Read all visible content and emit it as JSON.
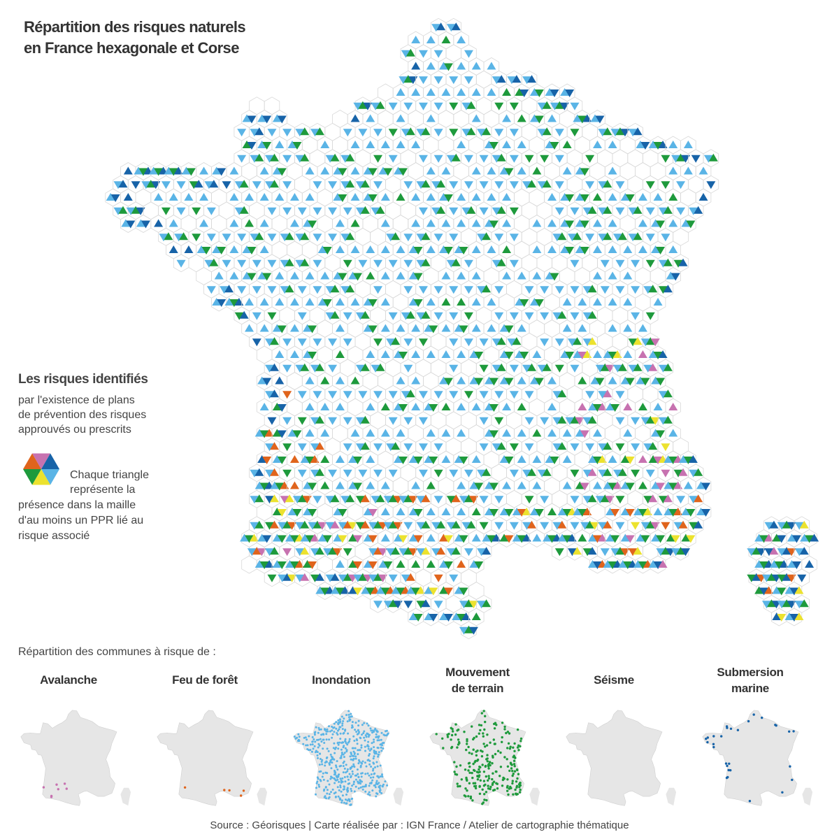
{
  "header": {
    "title_lines": [
      "Répartition des risques naturels",
      "en France hexagonale et Corse"
    ]
  },
  "legend": {
    "title": "Les risques identifiés",
    "description": [
      "par l'existence de plans",
      "de prévention des risques",
      "approuvés ou prescrits"
    ],
    "triangle_note": [
      "Chaque triangle",
      "représente la",
      "présence dans la maille",
      "d'au moins un PPR lié au",
      "risque associé"
    ]
  },
  "small_multiples": {
    "heading": "Répartition des communes à risque de :",
    "risks": [
      {
        "name_lines": [
          "Avalanche"
        ],
        "color": "#c772b0"
      },
      {
        "name_lines": [
          "Feu de forêt"
        ],
        "color": "#e0641c"
      },
      {
        "name_lines": [
          "Inondation"
        ],
        "color": "#5ab4e6"
      },
      {
        "name_lines": [
          "Mouvement",
          "de terrain"
        ],
        "color": "#1e9a3c"
      },
      {
        "name_lines": [
          "Séisme"
        ],
        "color": "#ece22e"
      },
      {
        "name_lines": [
          "Submersion",
          "marine"
        ],
        "color": "#1763a8"
      }
    ]
  },
  "source": "Source : Géorisques | Carte réalisée par : IGN France / Atelier de cartographie thématique"
}
